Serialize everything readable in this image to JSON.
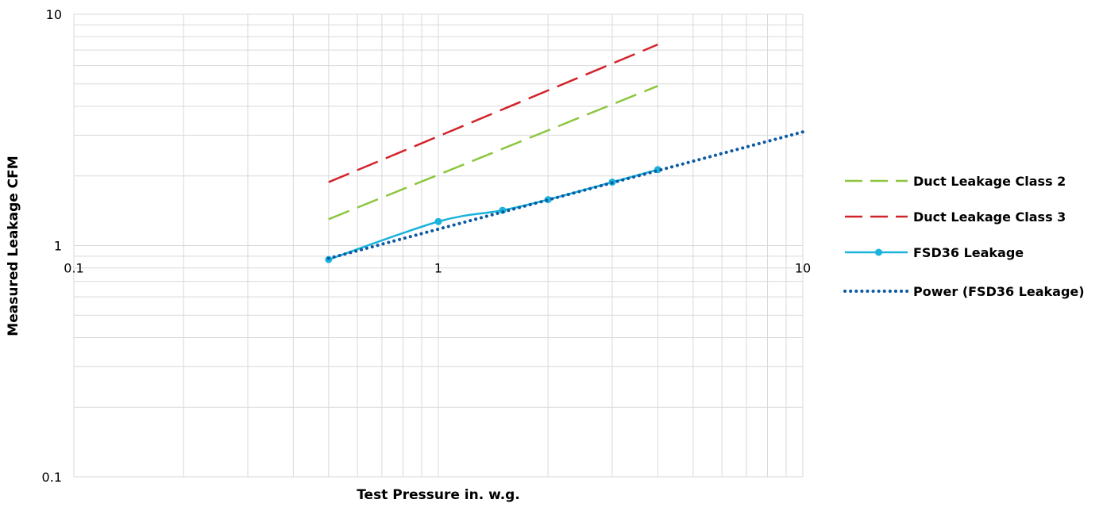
{
  "chart_data": {
    "type": "line",
    "title": "",
    "xlabel": "Test Pressure in. w.g.",
    "ylabel": "Measured Leakage CFM",
    "x_scale": "log",
    "y_scale": "log",
    "xlim": [
      0.1,
      10
    ],
    "ylim": [
      0.1,
      10
    ],
    "x_ticks": [
      "0.1",
      "1",
      "10"
    ],
    "y_ticks": [
      "0.1",
      "1",
      "10"
    ],
    "grid": true,
    "legend_position": "right",
    "series": [
      {
        "name": "Duct Leakage Class 2",
        "style": "dashed",
        "color": "#8dc63f",
        "x": [
          0.5,
          4
        ],
        "y": [
          1.3,
          4.9
        ]
      },
      {
        "name": "Duct Leakage Class 3",
        "style": "dashed",
        "color": "#d2232a",
        "x": [
          0.5,
          4
        ],
        "y": [
          1.88,
          7.4
        ]
      },
      {
        "name": "FSD36 Leakage",
        "style": "solid-markers",
        "color": "#1ab3dc",
        "x": [
          0.5,
          1,
          1.5,
          2,
          3,
          4
        ],
        "y": [
          0.87,
          1.27,
          1.42,
          1.58,
          1.88,
          2.13
        ]
      },
      {
        "name": "Power (FSD36 Leakage)",
        "style": "dotted",
        "color": "#0b5aa4",
        "x": [
          0.5,
          10
        ],
        "y": [
          0.88,
          3.1
        ]
      }
    ]
  }
}
